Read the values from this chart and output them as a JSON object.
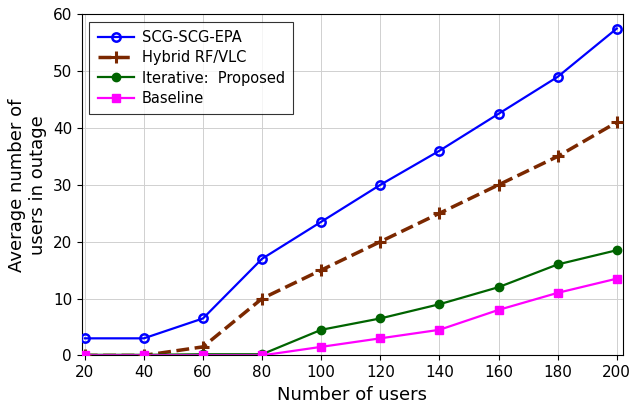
{
  "x": [
    20,
    40,
    60,
    80,
    100,
    120,
    140,
    160,
    180,
    200
  ],
  "scg_epa": [
    3.0,
    3.0,
    6.5,
    17.0,
    23.5,
    30.0,
    36.0,
    42.5,
    49.0,
    57.5
  ],
  "hybrid_rfvlc": [
    0.0,
    0.0,
    1.5,
    10.0,
    15.0,
    20.0,
    25.0,
    30.0,
    35.0,
    41.0
  ],
  "iterative": [
    0.1,
    0.1,
    0.2,
    0.2,
    4.5,
    6.5,
    9.0,
    12.0,
    16.0,
    18.5
  ],
  "baseline": [
    0.0,
    0.0,
    0.0,
    0.0,
    1.5,
    3.0,
    4.5,
    8.0,
    11.0,
    13.5
  ],
  "colors": {
    "scg_epa": "#0000ff",
    "hybrid_rfvlc": "#7b2800",
    "iterative": "#006400",
    "baseline": "#ff00ff"
  },
  "xlabel": "Number of users",
  "ylabel": "Average number of\nusers in outage",
  "xlim": [
    20,
    200
  ],
  "ylim": [
    0,
    60
  ],
  "yticks": [
    0,
    10,
    20,
    30,
    40,
    50,
    60
  ],
  "xticks": [
    20,
    40,
    60,
    80,
    100,
    120,
    140,
    160,
    180,
    200
  ],
  "legend_labels": [
    "SCG-SCG-EPA",
    "Hybrid RF/VLC",
    "Iterative:  Proposed",
    "Baseline"
  ],
  "bg_color": "#ffffff"
}
